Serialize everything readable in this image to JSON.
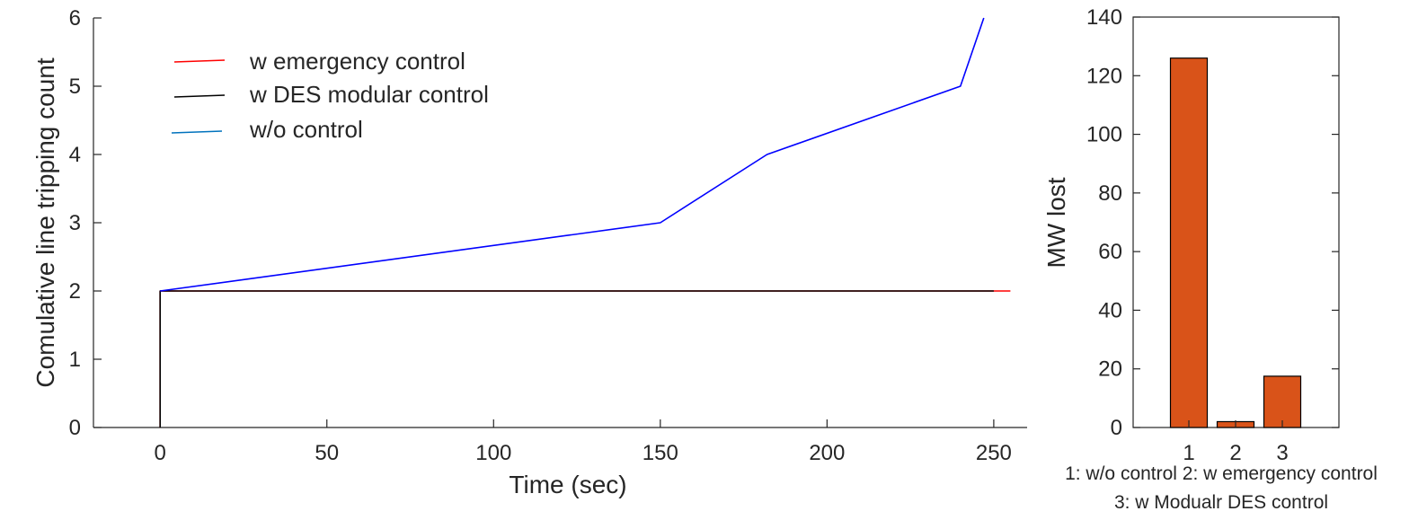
{
  "chart_data": [
    {
      "type": "line",
      "xlabel": "Time (sec)",
      "ylabel": "Comulative line tripping count",
      "xlim": [
        -20,
        260
      ],
      "ylim": [
        0,
        6
      ],
      "xticks": [
        0,
        50,
        100,
        150,
        200,
        250
      ],
      "yticks": [
        0,
        1,
        2,
        3,
        4,
        5,
        6
      ],
      "legend_position": "top-left",
      "series": [
        {
          "name": "w emergency control",
          "legend_color": "#ff0000",
          "color": "#ff0000",
          "x": [
            0,
            0,
            255
          ],
          "y": [
            0,
            2,
            2
          ]
        },
        {
          "name": "w DES modular control",
          "legend_color": "#000000",
          "color": "#000000",
          "x": [
            0,
            0,
            250
          ],
          "y": [
            0,
            2,
            2
          ]
        },
        {
          "name": "w/o control",
          "legend_color": "#0072bd",
          "color": "#0000ff",
          "x": [
            0,
            150,
            182,
            240,
            247
          ],
          "y": [
            2,
            3,
            4,
            5,
            6
          ]
        }
      ]
    },
    {
      "type": "bar",
      "ylabel": "MW lost",
      "categories": [
        "1",
        "2",
        "3"
      ],
      "values": [
        126,
        2,
        17.5
      ],
      "ylim": [
        0,
        140
      ],
      "yticks": [
        0,
        20,
        40,
        60,
        80,
        100,
        120,
        140
      ],
      "bar_color": "#d95319",
      "caption_line1": "1: w/o control 2: w emergency control",
      "caption_line2": "3: w Modualr DES control"
    }
  ]
}
